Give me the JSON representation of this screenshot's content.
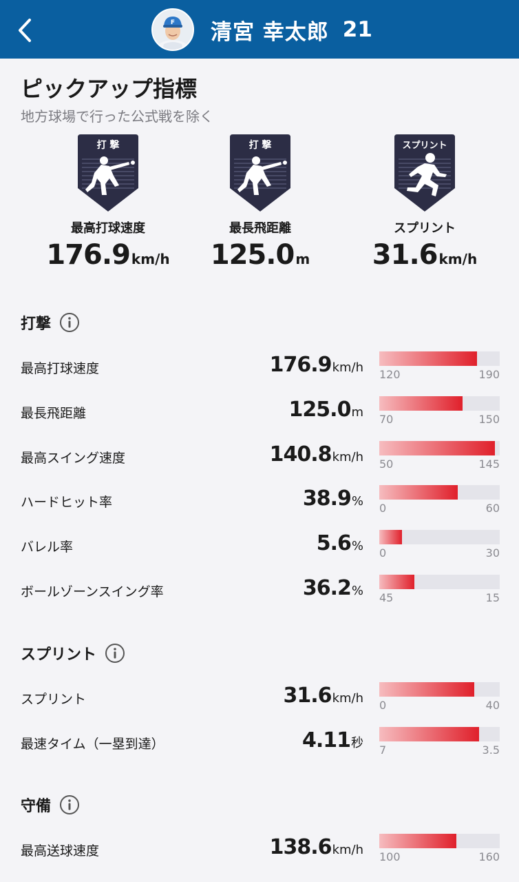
{
  "header": {
    "name": "清宮 幸太郎",
    "number": "21",
    "cap_letter": "F"
  },
  "section": {
    "title": "ピックアップ指標",
    "note": "地方球場で行った公式戦を除く"
  },
  "pickups": [
    {
      "badge": "打 撃",
      "label": "最高打球速度",
      "value": "176.9",
      "unit": "km/h",
      "icon": "batter-icon"
    },
    {
      "badge": "打 撃",
      "label": "最長飛距離",
      "value": "125.0",
      "unit": "m",
      "icon": "batter-icon"
    },
    {
      "badge": "スプリント",
      "label": "スプリント",
      "value": "31.6",
      "unit": "km/h",
      "icon": "runner-icon"
    }
  ],
  "groups": [
    {
      "title": "打撃",
      "metrics": [
        {
          "label": "最高打球速度",
          "value": "176.9",
          "unit": "km/h",
          "min": "120",
          "max": "190",
          "fill": 0.81
        },
        {
          "label": "最長飛距離",
          "value": "125.0",
          "unit": "m",
          "min": "70",
          "max": "150",
          "fill": 0.69
        },
        {
          "label": "最高スイング速度",
          "value": "140.8",
          "unit": "km/h",
          "min": "50",
          "max": "145",
          "fill": 0.96
        },
        {
          "label": "ハードヒット率",
          "value": "38.9",
          "unit": "%",
          "min": "0",
          "max": "60",
          "fill": 0.65
        },
        {
          "label": "バレル率",
          "value": "5.6",
          "unit": "%",
          "min": "0",
          "max": "30",
          "fill": 0.19
        },
        {
          "label": "ボールゾーンスイング率",
          "value": "36.2",
          "unit": "%",
          "min": "45",
          "max": "15",
          "fill": 0.29
        }
      ]
    },
    {
      "title": "スプリント",
      "metrics": [
        {
          "label": "スプリント",
          "value": "31.6",
          "unit": "km/h",
          "min": "0",
          "max": "40",
          "fill": 0.79
        },
        {
          "label": "最速タイム（一塁到達）",
          "value": "4.11",
          "unit": "秒",
          "min": "7",
          "max": "3.5",
          "fill": 0.83
        }
      ]
    },
    {
      "title": "守備",
      "metrics": [
        {
          "label": "最高送球速度",
          "value": "138.6",
          "unit": "km/h",
          "min": "100",
          "max": "160",
          "fill": 0.64
        }
      ]
    }
  ],
  "colors": {
    "header_bg": "#0a5fa0",
    "bar_fill_end": "#e0202b",
    "bar_track": "#e4e4ea",
    "badge_dark": "#2c2d45"
  }
}
